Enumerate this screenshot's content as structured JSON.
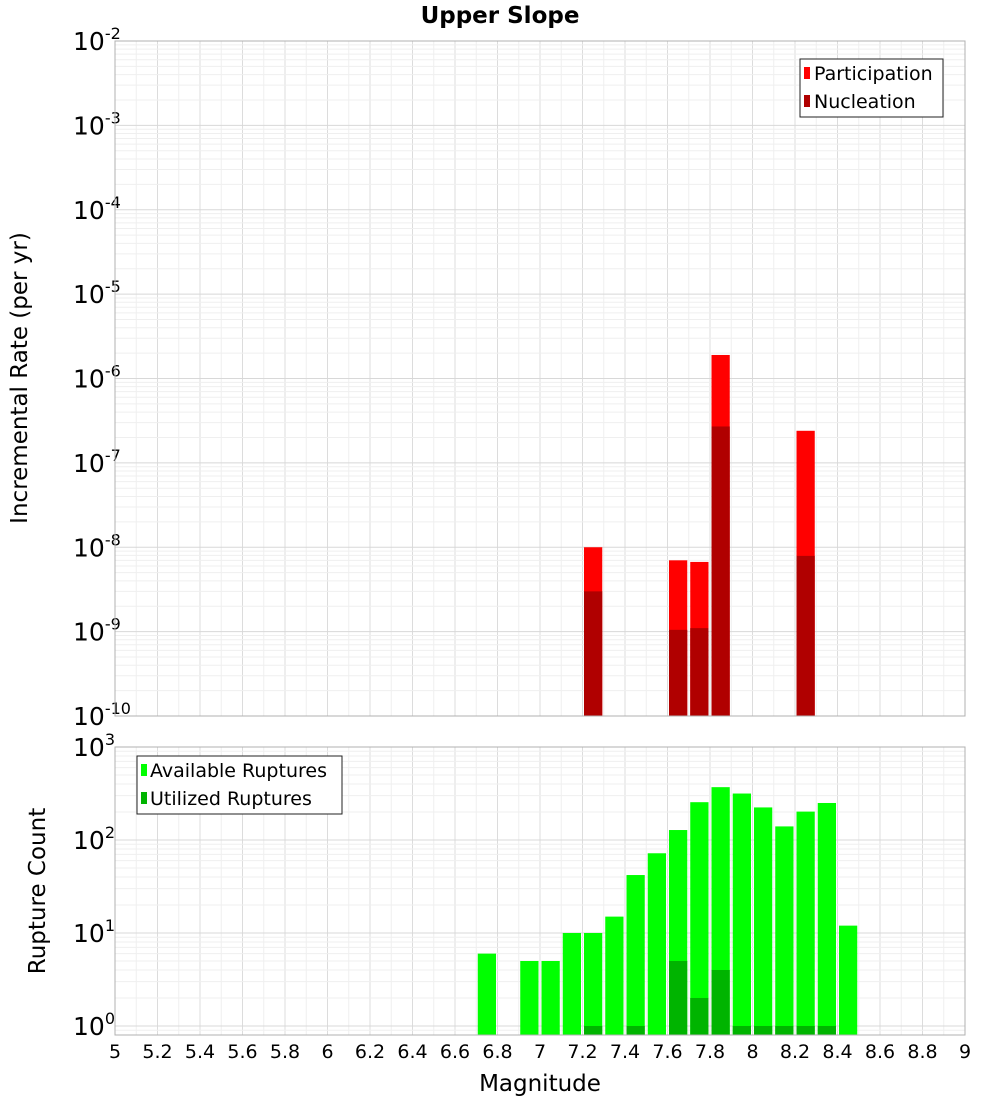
{
  "chart_data": [
    {
      "type": "bar",
      "title": "Upper Slope",
      "xlabel": "",
      "ylabel": "Incremental Rate (per yr)",
      "yscale": "log",
      "ylim": [
        1e-10,
        0.01
      ],
      "xlim": [
        5,
        9
      ],
      "grid": true,
      "legend_position": "top-right",
      "bar_width": 0.1,
      "y_tick_labels": [
        {
          "exp": -10,
          "base": "10",
          "sup": "-10"
        },
        {
          "exp": -9,
          "base": "10",
          "sup": "-9"
        },
        {
          "exp": -8,
          "base": "10",
          "sup": "-8"
        },
        {
          "exp": -7,
          "base": "10",
          "sup": "-7"
        },
        {
          "exp": -6,
          "base": "10",
          "sup": "-6"
        },
        {
          "exp": -5,
          "base": "10",
          "sup": "-5"
        },
        {
          "exp": -4,
          "base": "10",
          "sup": "-4"
        },
        {
          "exp": -3,
          "base": "10",
          "sup": "-3"
        },
        {
          "exp": -2,
          "base": "10",
          "sup": "-2"
        }
      ],
      "series": [
        {
          "name": "Participation",
          "color": "#ff0000",
          "x": [
            7.25,
            7.65,
            7.75,
            7.85,
            8.25
          ],
          "values": [
            1e-08,
            7e-09,
            6.7e-09,
            1.9e-06,
            2.4e-07
          ]
        },
        {
          "name": "Nucleation",
          "color": "#b00000",
          "x": [
            7.25,
            7.65,
            7.75,
            7.85,
            8.25
          ],
          "values": [
            3e-09,
            1.05e-09,
            1.1e-09,
            2.7e-07,
            7.9e-09
          ]
        }
      ]
    },
    {
      "type": "bar",
      "title": "",
      "xlabel": "Magnitude",
      "ylabel": "Rupture Count",
      "yscale": "log",
      "ylim": [
        0.8,
        1000
      ],
      "xlim": [
        5,
        9
      ],
      "grid": true,
      "legend_position": "top-left",
      "bar_width": 0.1,
      "x_tick_labels": [
        "5",
        "5.2",
        "5.4",
        "5.6",
        "5.8",
        "6",
        "6.2",
        "6.4",
        "6.6",
        "6.8",
        "7",
        "7.2",
        "7.4",
        "7.6",
        "7.8",
        "8",
        "8.2",
        "8.4",
        "8.6",
        "8.8",
        "9"
      ],
      "y_tick_labels": [
        {
          "exp": 0,
          "base": "10",
          "sup": "0"
        },
        {
          "exp": 1,
          "base": "10",
          "sup": "1"
        },
        {
          "exp": 2,
          "base": "10",
          "sup": "2"
        },
        {
          "exp": 3,
          "base": "10",
          "sup": "3"
        }
      ],
      "series": [
        {
          "name": "Available Ruptures",
          "color": "#00ff00",
          "x": [
            6.75,
            6.95,
            7.05,
            7.15,
            7.25,
            7.35,
            7.45,
            7.55,
            7.65,
            7.75,
            7.85,
            7.95,
            8.05,
            8.15,
            8.25,
            8.35,
            8.45
          ],
          "values": [
            6,
            5,
            5,
            10,
            10,
            15,
            42,
            72,
            128,
            255,
            370,
            316,
            224,
            140,
            202,
            250,
            12
          ]
        },
        {
          "name": "Utilized Ruptures",
          "color": "#00b400",
          "x": [
            7.25,
            7.45,
            7.65,
            7.75,
            7.85,
            7.95,
            8.05,
            8.15,
            8.25,
            8.35
          ],
          "values": [
            1,
            1,
            5,
            2,
            4,
            1,
            1,
            1,
            1,
            1
          ]
        }
      ]
    }
  ]
}
